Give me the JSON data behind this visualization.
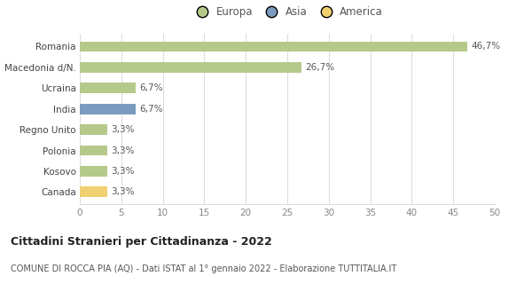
{
  "categories": [
    "Romania",
    "Macedonia d/N.",
    "Ucraina",
    "India",
    "Regno Unito",
    "Polonia",
    "Kosovo",
    "Canada"
  ],
  "values": [
    46.7,
    26.7,
    6.7,
    6.7,
    3.3,
    3.3,
    3.3,
    3.3
  ],
  "labels": [
    "46,7%",
    "26,7%",
    "6,7%",
    "6,7%",
    "3,3%",
    "3,3%",
    "3,3%",
    "3,3%"
  ],
  "bar_colors": [
    "#b5c98a",
    "#b5c98a",
    "#b5c98a",
    "#7b9cc0",
    "#b5c98a",
    "#b5c98a",
    "#b5c98a",
    "#f0d070"
  ],
  "legend_labels": [
    "Europa",
    "Asia",
    "America"
  ],
  "legend_colors": [
    "#b5c98a",
    "#7b9cc0",
    "#f0d070"
  ],
  "xlim": [
    0,
    50
  ],
  "xticks": [
    0,
    5,
    10,
    15,
    20,
    25,
    30,
    35,
    40,
    45,
    50
  ],
  "title": "Cittadini Stranieri per Cittadinanza - 2022",
  "subtitle": "COMUNE DI ROCCA PIA (AQ) - Dati ISTAT al 1° gennaio 2022 - Elaborazione TUTTITALIA.IT",
  "background_color": "#ffffff",
  "grid_color": "#dddddd",
  "bar_height": 0.5,
  "label_fontsize": 7.5,
  "ytick_fontsize": 7.5,
  "xtick_fontsize": 7.5,
  "legend_fontsize": 8.5,
  "title_fontsize": 9,
  "subtitle_fontsize": 7
}
